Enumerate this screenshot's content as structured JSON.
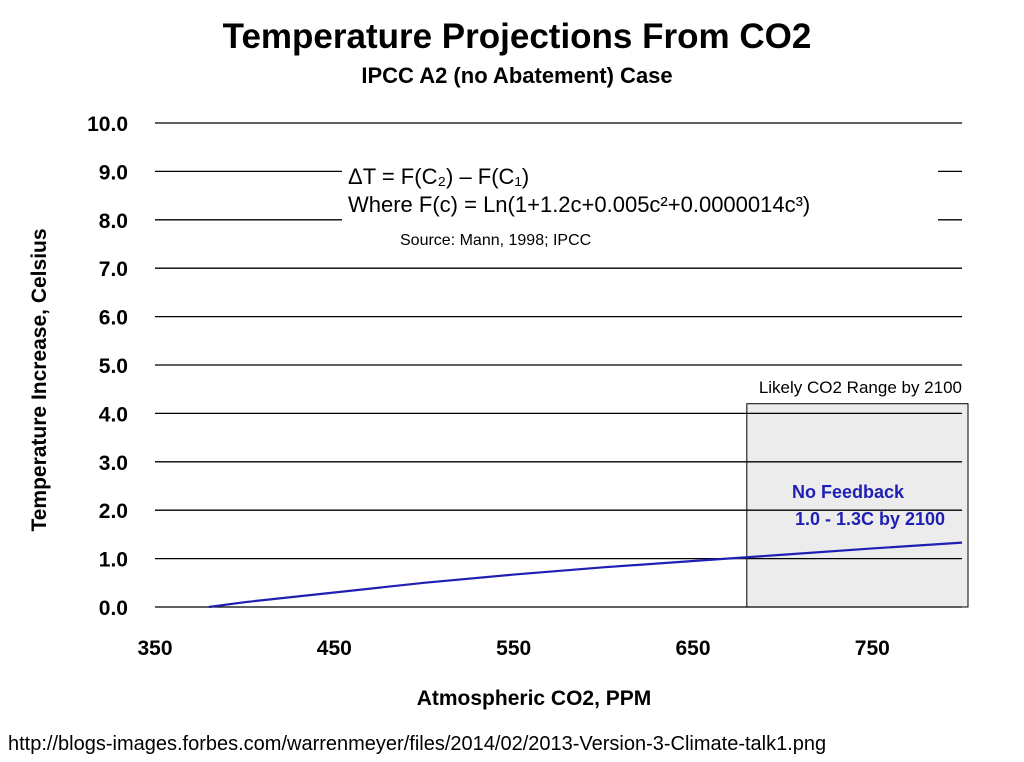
{
  "chart_data": {
    "type": "line",
    "title": "Temperature Projections From CO2",
    "subtitle": "IPCC A2 (no Abatement) Case",
    "xlabel": "Atmospheric CO2, PPM",
    "ylabel": "Temperature Increase, Celsius",
    "xlim": [
      350,
      800
    ],
    "ylim": [
      0,
      10
    ],
    "x_ticks": [
      "350",
      "450",
      "550",
      "650",
      "750"
    ],
    "y_ticks": [
      "0.0",
      "1.0",
      "2.0",
      "3.0",
      "4.0",
      "5.0",
      "6.0",
      "7.0",
      "8.0",
      "9.0",
      "10.0"
    ],
    "grid": true,
    "series": [
      {
        "color": "#1f1fb4",
        "x": [
          380,
          400,
          450,
          500,
          550,
          600,
          650,
          700,
          750,
          800
        ],
        "y": [
          0.0,
          0.1,
          0.3,
          0.5,
          0.67,
          0.82,
          0.95,
          1.08,
          1.21,
          1.33
        ]
      }
    ],
    "annotations": {
      "formula_line1": "ΔT = F(C₂) – F(C₁)",
      "formula_line2": "Where F(c) = Ln(1+1.2c+0.005c²+0.0000014c³)",
      "source": "Source:  Mann,  1998; IPCC",
      "range_box_label": "Likely CO2 Range by 2100",
      "range_box_x": [
        680,
        800
      ],
      "range_box_y": [
        0,
        4.2
      ],
      "range_box_color": "#ececec",
      "no_feedback_line1": "No Feedback",
      "no_feedback_line2": "1.0 - 1.3C by 2100",
      "no_feedback_color": "#1f1fb4"
    }
  },
  "footer": {
    "url": "http://blogs-images.forbes.com/warrenmeyer/files/2014/02/2013-Version-3-Climate-talk1.png"
  }
}
